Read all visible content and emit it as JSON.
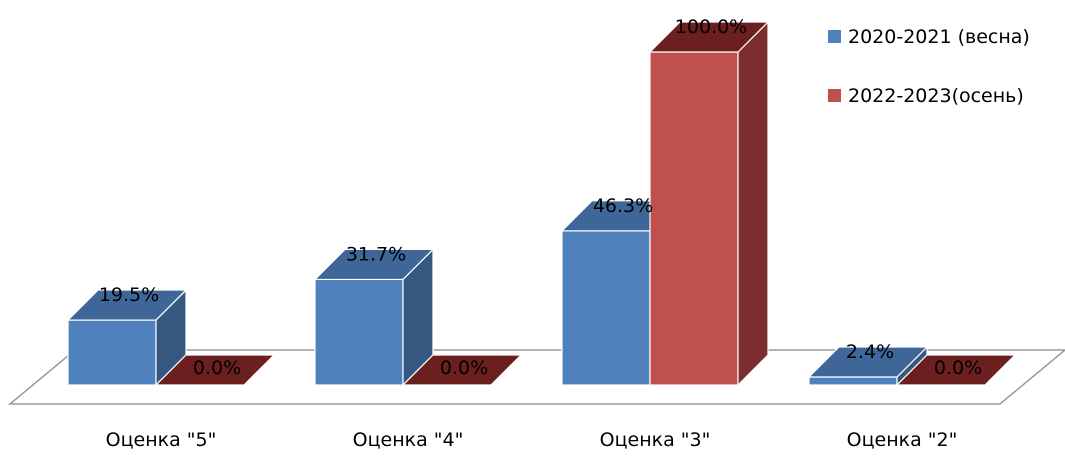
{
  "chart_data": {
    "type": "bar",
    "subtype": "3d-clustered-column",
    "title": "",
    "xlabel": "",
    "ylabel": "",
    "categories": [
      "Оценка \"5\"",
      "Оценка \"4\"",
      "Оценка \"3\"",
      "Оценка \"2\""
    ],
    "series": [
      {
        "name": "2020-2021 (весна)",
        "values": [
          19.5,
          31.7,
          46.3,
          2.4
        ],
        "labels": [
          "19.5%",
          "31.7%",
          "46.3%",
          "2.4%"
        ],
        "color": "#4f81bd",
        "side_color": "#36577f",
        "top_color": "#3e6699"
      },
      {
        "name": "2022-2023(осень)",
        "values": [
          0.0,
          0.0,
          100.0,
          0.0
        ],
        "labels": [
          "0.0%",
          "0.0%",
          "100.0%",
          "0.0%"
        ],
        "color": "#c0504d",
        "side_color": "#7b2e2c",
        "top_color": "#6b1f1f"
      }
    ],
    "ylim": [
      0,
      100
    ],
    "value_format": "percent",
    "grid": false,
    "legend_position": "top-right",
    "floor_visible": true
  }
}
